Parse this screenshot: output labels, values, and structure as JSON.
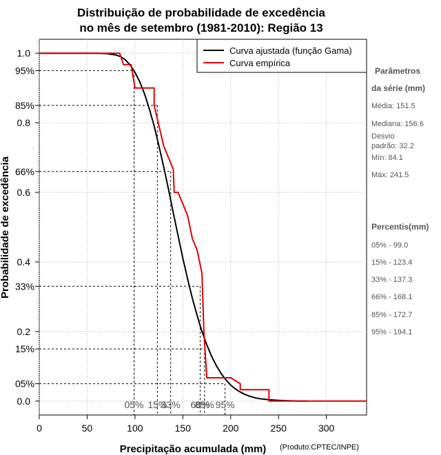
{
  "chart_data": {
    "type": "line",
    "title_lines": [
      "Distribuição de probabilidade de excedência",
      "no mês de setembro (1981-2010): Região 13"
    ],
    "xlabel": "Precipitação acumulada (mm)",
    "ylabel": "Probabilidade de excedência",
    "source": "(Produto:CPTEC/INPE)",
    "xlim": [
      0,
      342
    ],
    "ylim": [
      -0.04,
      1.04
    ],
    "x_ticks": [
      0,
      50,
      100,
      150,
      200,
      250,
      300
    ],
    "y_ticks_left_outer": [
      {
        "value": 1.0,
        "label": "1.0"
      },
      {
        "value": 0.8,
        "label": "0.8"
      },
      {
        "value": 0.6,
        "label": "0.6"
      },
      {
        "value": 0.4,
        "label": "0.4"
      },
      {
        "value": 0.2,
        "label": "0.2"
      },
      {
        "value": 0.0,
        "label": "0.0"
      }
    ],
    "y_ticks_left_inner": [
      {
        "value": 0.95,
        "label": "95%"
      },
      {
        "value": 0.85,
        "label": "85%"
      },
      {
        "value": 0.66,
        "label": "66%"
      },
      {
        "value": 0.33,
        "label": "33%"
      },
      {
        "value": 0.15,
        "label": "15%"
      },
      {
        "value": 0.05,
        "label": "05%"
      }
    ],
    "percentile_lines": [
      {
        "prob": 0.95,
        "x": 99.0,
        "label": "05%"
      },
      {
        "prob": 0.85,
        "x": 123.4,
        "label": "15%"
      },
      {
        "prob": 0.66,
        "x": 137.3,
        "label": "33%"
      },
      {
        "prob": 0.33,
        "x": 168.1,
        "label": "66%"
      },
      {
        "prob": 0.15,
        "x": 172.7,
        "label": "85%"
      },
      {
        "prob": 0.05,
        "x": 194.1,
        "label": "95%"
      }
    ],
    "series": [
      {
        "name": "Curva ajustada (função Gama)",
        "color": "#000000",
        "x": [
          0,
          60,
          70,
          80,
          85,
          90,
          95,
          100,
          105,
          110,
          115,
          120,
          125,
          130,
          135,
          140,
          145,
          150,
          155,
          160,
          165,
          170,
          175,
          180,
          185,
          190,
          195,
          200,
          205,
          210,
          215,
          220,
          225,
          230,
          240,
          250,
          260,
          270,
          280
        ],
        "y": [
          1.0,
          1.0,
          0.999,
          0.995,
          0.99,
          0.981,
          0.966,
          0.945,
          0.918,
          0.883,
          0.84,
          0.791,
          0.734,
          0.673,
          0.609,
          0.542,
          0.476,
          0.411,
          0.351,
          0.295,
          0.245,
          0.2,
          0.162,
          0.129,
          0.102,
          0.079,
          0.061,
          0.046,
          0.035,
          0.026,
          0.019,
          0.014,
          0.01,
          0.007,
          0.004,
          0.002,
          0.001,
          0.0,
          0.0
        ]
      },
      {
        "name": "Curva empírica",
        "color": "#e00000",
        "x": [
          0,
          84,
          88,
          96,
          100,
          110,
          120,
          120,
          130,
          140,
          141,
          145,
          150,
          155,
          160,
          165,
          170,
          172,
          175,
          200,
          210,
          210,
          240,
          240,
          250,
          342
        ],
        "y": [
          1.0,
          1.0,
          0.967,
          0.967,
          0.9,
          0.9,
          0.9,
          0.85,
          0.733,
          0.667,
          0.6,
          0.6,
          0.567,
          0.533,
          0.467,
          0.433,
          0.367,
          0.2,
          0.067,
          0.067,
          0.05,
          0.033,
          0.033,
          0.0,
          0.0,
          0.0
        ]
      }
    ],
    "legend_position": "top-right"
  },
  "sidebar": {
    "params_heading_1": "Parâmetros",
    "params_heading_2": "da série (mm)",
    "media": "Média: 151.5",
    "mediana": "Mediana: 156.6",
    "desvio_1": "Desvio",
    "desvio_2": "padrão: 32.2",
    "min": "Mín: 84.1",
    "max": "Máx: 241.5",
    "percentis_heading": "Percentis(mm)",
    "percentis": [
      "05% - 99.0",
      "15% - 123.4",
      "33% - 137.3",
      "66% - 168.1",
      "85% - 172.7",
      "95% - 194.1"
    ]
  }
}
